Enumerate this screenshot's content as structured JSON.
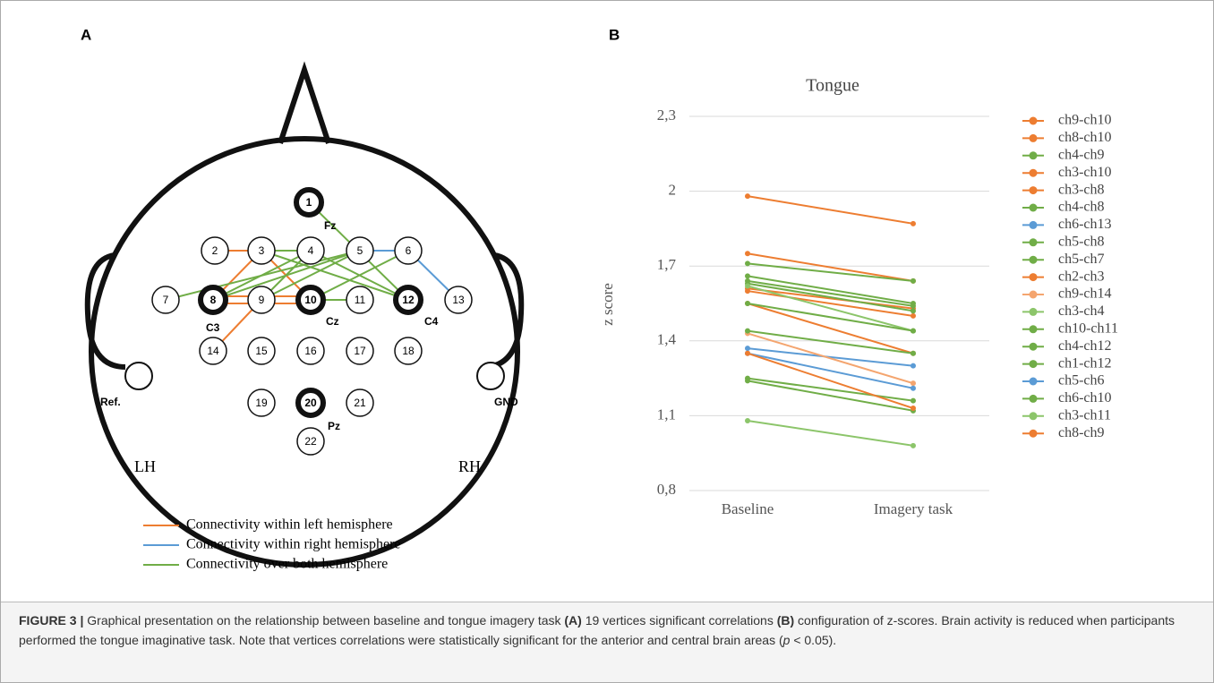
{
  "panel_labels": [
    "A",
    "B"
  ],
  "diagram": {
    "electrodes": [
      "1",
      "2",
      "3",
      "4",
      "5",
      "6",
      "7",
      "8",
      "9",
      "10",
      "11",
      "12",
      "13",
      "14",
      "15",
      "16",
      "17",
      "18",
      "19",
      "20",
      "21",
      "22"
    ],
    "sites": [
      "Fz",
      "C3",
      "Cz",
      "C4",
      "Pz"
    ],
    "reference": "Ref.",
    "ground": "GND",
    "left": "LH",
    "right": "RH",
    "legend": [
      "Connectivity within left hemisphere",
      "Connectivity within right hemisphere",
      "Connectivity over both hemisphere"
    ]
  },
  "chart_data": {
    "type": "line",
    "title": "Tongue",
    "y_label": "z score",
    "categories": [
      "Baseline",
      "Imagery task"
    ],
    "ylim": [
      0.8,
      2.3
    ],
    "yticks": [
      {
        "value": 0.8,
        "label": "0,8"
      },
      {
        "value": 1.1,
        "label": "1,1"
      },
      {
        "value": 1.4,
        "label": "1,4"
      },
      {
        "value": 1.7,
        "label": "1,7"
      },
      2,
      {
        "value": 2.3,
        "label": "2,3"
      }
    ],
    "grid": true,
    "series": [
      {
        "name": "ch9-ch10",
        "color": "#ed7d31",
        "values": [
          1.98,
          1.87
        ]
      },
      {
        "name": "ch8-ch10",
        "color": "#ed7d31",
        "values": [
          1.75,
          1.64
        ]
      },
      {
        "name": "ch4-ch9",
        "color": "#70ad47",
        "values": [
          1.71,
          1.64
        ]
      },
      {
        "name": "ch3-ch10",
        "color": "#ed7d31",
        "values": [
          1.61,
          1.53
        ]
      },
      {
        "name": "ch3-ch8",
        "color": "#ed7d31",
        "values": [
          1.6,
          1.5
        ]
      },
      {
        "name": "ch4-ch8",
        "color": "#70ad47",
        "values": [
          1.66,
          1.55
        ]
      },
      {
        "name": "ch6-ch13",
        "color": "#5b9bd5",
        "values": [
          1.37,
          1.3
        ]
      },
      {
        "name": "ch5-ch8",
        "color": "#70ad47",
        "values": [
          1.64,
          1.54
        ]
      },
      {
        "name": "ch5-ch7",
        "color": "#70ad47",
        "values": [
          1.63,
          1.52
        ]
      },
      {
        "name": "ch2-ch3",
        "color": "#ed7d31",
        "values": [
          1.55,
          1.35
        ]
      },
      {
        "name": "ch9-ch14",
        "color": "#f4a56f",
        "values": [
          1.43,
          1.23
        ]
      },
      {
        "name": "ch3-ch4",
        "color": "#8cc56a",
        "values": [
          1.62,
          1.44
        ]
      },
      {
        "name": "ch10-ch11",
        "color": "#70ad47",
        "values": [
          1.55,
          1.44
        ]
      },
      {
        "name": "ch4-ch12",
        "color": "#70ad47",
        "values": [
          1.44,
          1.35
        ]
      },
      {
        "name": "ch1-ch12",
        "color": "#70ad47",
        "values": [
          1.25,
          1.16
        ]
      },
      {
        "name": "ch5-ch6",
        "color": "#5b9bd5",
        "values": [
          1.35,
          1.21
        ]
      },
      {
        "name": "ch6-ch10",
        "color": "#70ad47",
        "values": [
          1.24,
          1.12
        ]
      },
      {
        "name": "ch3-ch11",
        "color": "#8cc56a",
        "values": [
          1.08,
          0.98
        ]
      },
      {
        "name": "ch8-ch9",
        "color": "#ed7d31",
        "values": [
          1.35,
          1.13
        ]
      }
    ]
  },
  "caption": {
    "label": "FIGURE 3 |",
    "parts": [
      "Graphical presentation on the relationship between baseline and tongue imagery task ",
      "(A)",
      " 19 vertices significant correlations ",
      "(B)",
      " configuration of z-scores. Brain activity is reduced when participants performed the tongue imaginative task. Note that vertices correlations were statistically significant for the anterior and central brain areas (",
      "p",
      " < 0.05)."
    ]
  }
}
